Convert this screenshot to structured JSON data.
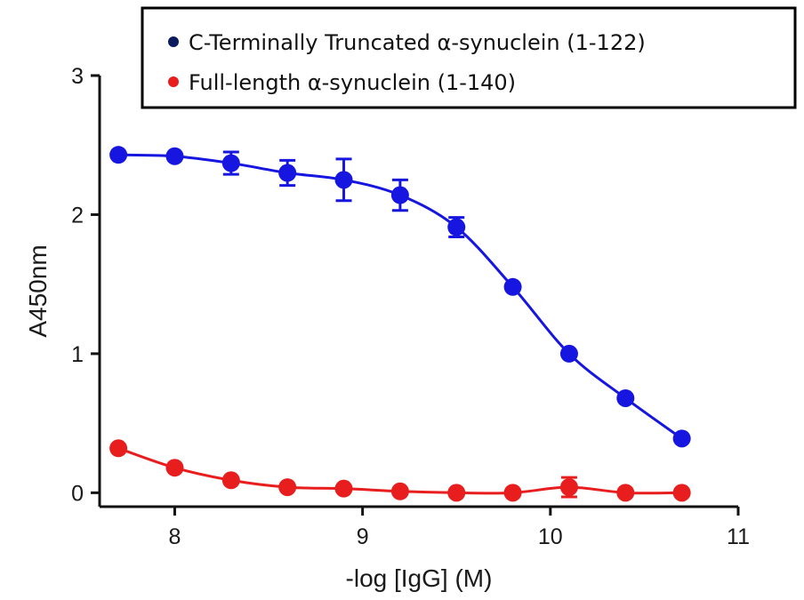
{
  "chart_data": {
    "type": "scatter",
    "title": "",
    "xlabel": "-log [IgG] (M)",
    "ylabel": "A450nm",
    "xlim": [
      7.6,
      11
    ],
    "ylim": [
      -0.1,
      3
    ],
    "xticks": [
      8,
      9,
      10,
      11
    ],
    "yticks": [
      0,
      1,
      2,
      3
    ],
    "grid": false,
    "legend_position": "top-right",
    "series": [
      {
        "name": "C-Terminally Truncated α-synuclein (1-122)",
        "color": "#1616e0",
        "x": [
          7.7,
          8.0,
          8.3,
          8.6,
          8.9,
          9.2,
          9.5,
          9.8,
          10.1,
          10.4,
          10.7
        ],
        "y": [
          2.43,
          2.42,
          2.37,
          2.3,
          2.25,
          2.14,
          1.91,
          1.48,
          1.0,
          0.68,
          0.39
        ],
        "err": [
          0,
          0,
          0.08,
          0.09,
          0.15,
          0.11,
          0.07,
          0,
          0,
          0,
          0
        ]
      },
      {
        "name": "Full-length α-synuclein (1-140)",
        "color": "#e81e1e",
        "x": [
          7.7,
          8.0,
          8.3,
          8.6,
          8.9,
          9.2,
          9.5,
          9.8,
          10.1,
          10.4,
          10.7
        ],
        "y": [
          0.32,
          0.18,
          0.09,
          0.04,
          0.03,
          0.01,
          0.0,
          0.0,
          0.04,
          0.0,
          0.0
        ],
        "err": [
          0,
          0,
          0,
          0,
          0,
          0,
          0,
          0,
          0.07,
          0,
          0
        ]
      }
    ]
  }
}
